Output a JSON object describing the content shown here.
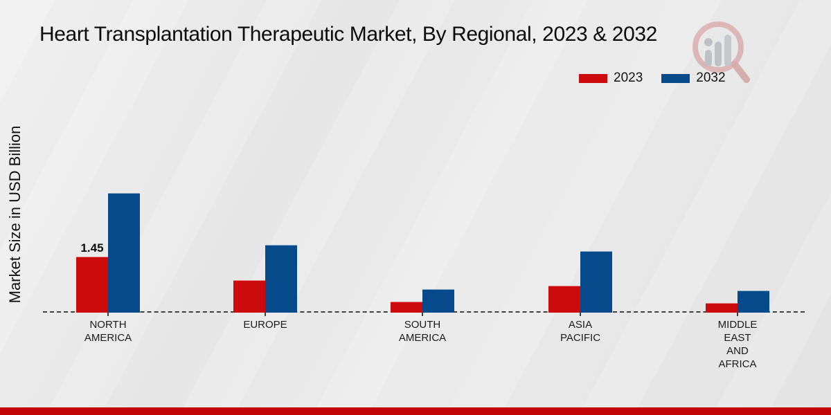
{
  "page": {
    "title": "Heart Transplantation Therapeutic Market, By Regional, 2023 & 2032",
    "colors": {
      "background": "#e7e7e7",
      "footer_bar": "#c00606",
      "baseline": "#3f3f3f"
    },
    "watermark_icon": "magnifier-bar-chart-logo"
  },
  "chart_data": {
    "type": "bar",
    "title": "Heart Transplantation Therapeutic Market, By Regional, 2023 & 2032",
    "xlabel": "",
    "ylabel": "Market Size in USD Billion",
    "unit": "USD Billion",
    "categories": [
      "NORTH AMERICA",
      "EUROPE",
      "SOUTH AMERICA",
      "ASIA PACIFIC",
      "MIDDLE EAST AND AFRICA"
    ],
    "category_label_lines": [
      [
        "NORTH",
        "AMERICA"
      ],
      [
        "EUROPE"
      ],
      [
        "SOUTH",
        "AMERICA"
      ],
      [
        "ASIA",
        "PACIFIC"
      ],
      [
        "MIDDLE",
        "EAST",
        "AND",
        "AFRICA"
      ]
    ],
    "series": [
      {
        "name": "2023",
        "color": "#cc0c0c",
        "values": [
          1.45,
          0.85,
          0.28,
          0.7,
          0.25
        ],
        "labels": [
          "1.45",
          "",
          "",
          "",
          ""
        ]
      },
      {
        "name": "2032",
        "color": "#074a8c",
        "values": [
          3.1,
          1.75,
          0.6,
          1.6,
          0.57
        ],
        "labels": [
          "",
          "",
          "",
          "",
          ""
        ]
      }
    ],
    "ylim": [
      0,
      3.6
    ],
    "grid": false,
    "legend_position": "top-right",
    "baseline_style": "dashed"
  }
}
